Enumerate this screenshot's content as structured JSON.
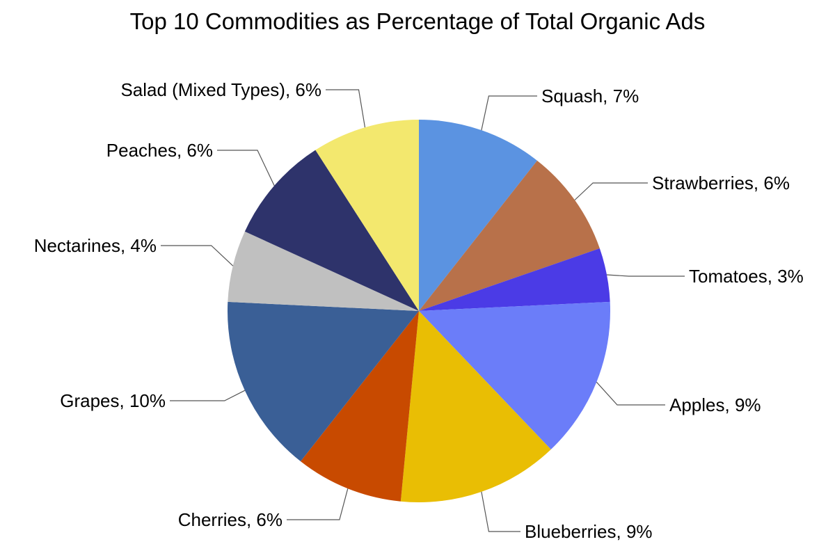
{
  "chart_data": {
    "type": "pie",
    "title": "Top 10 Commodities as Percentage of Total Organic Ads",
    "legend": "none",
    "label_format": "category, value",
    "slices": [
      {
        "label": "Squash",
        "value": 7,
        "value_label": "7%",
        "color": "#5B93E1"
      },
      {
        "label": "Strawberries",
        "value": 6,
        "value_label": "6%",
        "color": "#B8714A"
      },
      {
        "label": "Tomatoes",
        "value": 3,
        "value_label": "3%",
        "color": "#4B3BE6"
      },
      {
        "label": "Apples",
        "value": 9,
        "value_label": "9%",
        "color": "#6B7DF9"
      },
      {
        "label": "Blueberries",
        "value": 9,
        "value_label": "9%",
        "color": "#E9BE04"
      },
      {
        "label": "Cherries",
        "value": 6,
        "value_label": "6%",
        "color": "#C84A00"
      },
      {
        "label": "Grapes",
        "value": 10,
        "value_label": "10%",
        "color": "#3A5F96"
      },
      {
        "label": "Nectarines",
        "value": 4,
        "value_label": "4%",
        "color": "#C0C0C0"
      },
      {
        "label": "Peaches",
        "value": 6,
        "value_label": "6%",
        "color": "#2E336B"
      },
      {
        "label": "Salad (Mixed Types)",
        "value": 6,
        "value_label": "6%",
        "color": "#F3E86E"
      }
    ]
  }
}
